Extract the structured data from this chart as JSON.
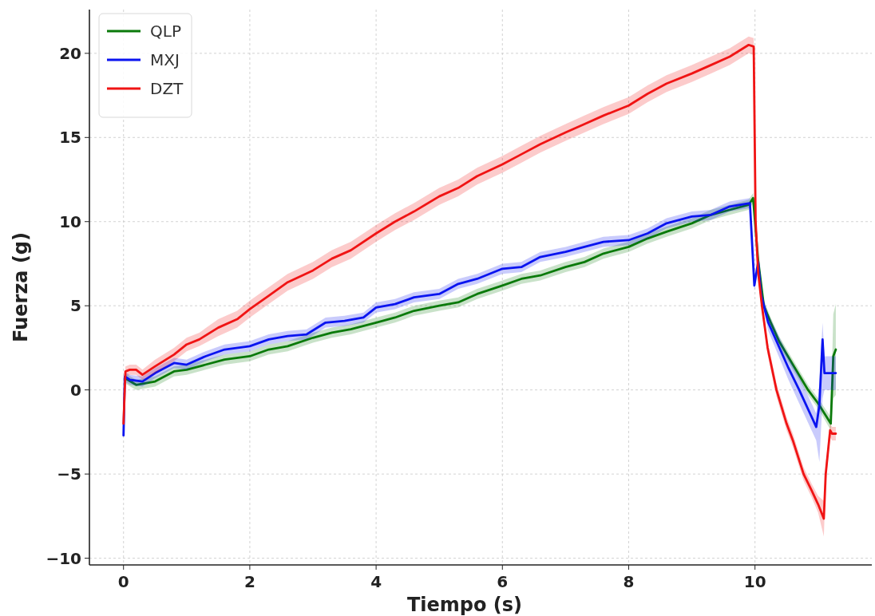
{
  "chart_data": {
    "type": "line",
    "xlabel": "Tiempo (s)",
    "ylabel": "Fuerza (g)",
    "xlim": [
      -0.54,
      11.85
    ],
    "ylim": [
      -10.4,
      22.6
    ],
    "xticks": [
      0,
      2,
      4,
      6,
      8,
      10
    ],
    "yticks": [
      {
        "value": -10,
        "label": "−10"
      },
      {
        "value": -5,
        "label": "−5"
      },
      0,
      5,
      10,
      15,
      20
    ],
    "grid": true,
    "legend": "top left",
    "line_style": "solid",
    "marker": "none",
    "series": [
      {
        "name": "QLP",
        "color": "#0a7a0a",
        "x": [
          0.02,
          0.2,
          0.5,
          0.8,
          1.0,
          1.3,
          1.6,
          2.0,
          2.3,
          2.6,
          3.0,
          3.3,
          3.6,
          4.0,
          4.3,
          4.6,
          5.0,
          5.3,
          5.6,
          6.0,
          6.3,
          6.6,
          7.0,
          7.3,
          7.6,
          8.0,
          8.3,
          8.6,
          9.0,
          9.3,
          9.6,
          9.9,
          9.97,
          10.05,
          10.14,
          10.25,
          10.38,
          10.6,
          10.84,
          11.0,
          11.2,
          11.24,
          11.28
        ],
        "values": [
          0.7,
          0.3,
          0.5,
          1.1,
          1.2,
          1.5,
          1.8,
          2.0,
          2.4,
          2.6,
          3.1,
          3.4,
          3.6,
          4.0,
          4.3,
          4.7,
          5.0,
          5.2,
          5.7,
          6.2,
          6.6,
          6.8,
          7.3,
          7.6,
          8.1,
          8.5,
          9.0,
          9.4,
          9.9,
          10.4,
          10.7,
          11.0,
          11.4,
          7.7,
          5.0,
          4.0,
          2.9,
          1.5,
          0.0,
          -0.8,
          -2.0,
          2.0,
          2.4
        ],
        "lower": [
          0.4,
          0.0,
          0.2,
          0.8,
          0.9,
          1.2,
          1.5,
          1.7,
          2.1,
          2.3,
          2.8,
          3.1,
          3.3,
          3.7,
          4.0,
          4.4,
          4.7,
          4.9,
          5.4,
          5.9,
          6.3,
          6.5,
          7.0,
          7.3,
          7.8,
          8.2,
          8.7,
          9.1,
          9.6,
          10.1,
          10.4,
          10.7,
          11.1,
          7.4,
          4.7,
          3.7,
          2.6,
          1.2,
          -0.3,
          -1.1,
          -2.4,
          -0.5,
          -0.3
        ],
        "upper": [
          1.0,
          0.6,
          0.8,
          1.4,
          1.5,
          1.8,
          2.1,
          2.3,
          2.7,
          2.9,
          3.4,
          3.7,
          3.9,
          4.3,
          4.6,
          5.0,
          5.3,
          5.5,
          6.0,
          6.5,
          6.9,
          7.1,
          7.6,
          7.9,
          8.4,
          8.8,
          9.3,
          9.7,
          10.2,
          10.7,
          11.0,
          11.3,
          11.7,
          8.0,
          5.3,
          4.3,
          3.2,
          1.8,
          0.3,
          -0.5,
          -1.6,
          4.5,
          5.1
        ]
      },
      {
        "name": "MXJ",
        "color": "#0a14f0",
        "x": [
          0,
          0.02,
          0.1,
          0.3,
          0.5,
          0.8,
          1.0,
          1.3,
          1.6,
          2.0,
          2.3,
          2.6,
          2.9,
          3.2,
          3.5,
          3.8,
          4.0,
          4.3,
          4.6,
          5.0,
          5.3,
          5.6,
          6.0,
          6.3,
          6.6,
          7.0,
          7.3,
          7.6,
          8.0,
          8.3,
          8.6,
          9.0,
          9.3,
          9.6,
          9.92,
          9.99,
          10.05,
          10.1,
          10.21,
          10.53,
          10.7,
          10.97,
          11.02,
          11.07,
          11.1,
          11.28
        ],
        "values": [
          -2.7,
          0.8,
          0.6,
          0.5,
          1.0,
          1.6,
          1.5,
          2.0,
          2.4,
          2.6,
          3.0,
          3.2,
          3.3,
          4.0,
          4.1,
          4.3,
          4.9,
          5.1,
          5.5,
          5.7,
          6.3,
          6.6,
          7.2,
          7.3,
          7.9,
          8.2,
          8.5,
          8.8,
          8.9,
          9.3,
          9.9,
          10.3,
          10.4,
          10.9,
          11.1,
          6.2,
          7.6,
          5.6,
          4.0,
          1.3,
          0.0,
          -2.2,
          -0.9,
          3.0,
          1.0,
          1.0
        ],
        "lower": [
          -2.9,
          0.5,
          0.3,
          0.2,
          0.7,
          1.3,
          1.2,
          1.7,
          2.1,
          2.3,
          2.7,
          2.9,
          3.0,
          3.7,
          3.8,
          4.0,
          4.6,
          4.8,
          5.2,
          5.4,
          6.0,
          6.3,
          6.9,
          7.0,
          7.6,
          7.9,
          8.2,
          8.5,
          8.6,
          9.0,
          9.6,
          10.0,
          10.1,
          10.6,
          10.8,
          5.9,
          7.3,
          5.3,
          3.5,
          0.6,
          -0.8,
          -3.0,
          -4.3,
          -0.5,
          0.0,
          0.0
        ],
        "upper": [
          -2.5,
          1.1,
          0.9,
          0.8,
          1.3,
          1.9,
          1.8,
          2.3,
          2.7,
          2.9,
          3.3,
          3.5,
          3.6,
          4.3,
          4.4,
          4.6,
          5.2,
          5.4,
          5.8,
          6.0,
          6.6,
          6.9,
          7.5,
          7.6,
          8.2,
          8.5,
          8.8,
          9.1,
          9.2,
          9.6,
          10.2,
          10.6,
          10.7,
          11.2,
          11.4,
          6.5,
          7.9,
          5.9,
          4.5,
          2.0,
          0.8,
          -1.4,
          0.4,
          4.0,
          2.0,
          2.0
        ]
      },
      {
        "name": "DZT",
        "color": "#f01414",
        "x": [
          0,
          0.03,
          0.1,
          0.2,
          0.3,
          0.5,
          0.8,
          1.0,
          1.2,
          1.5,
          1.8,
          2.0,
          2.3,
          2.6,
          3.0,
          3.3,
          3.6,
          4.0,
          4.3,
          4.6,
          5.0,
          5.3,
          5.6,
          6.0,
          6.3,
          6.6,
          7.0,
          7.3,
          7.6,
          8.0,
          8.3,
          8.6,
          9.0,
          9.3,
          9.6,
          9.9,
          9.98,
          10.01,
          10.05,
          10.11,
          10.2,
          10.34,
          10.5,
          10.6,
          10.77,
          10.9,
          11.0,
          11.09,
          11.12,
          11.19,
          11.22,
          11.28
        ],
        "values": [
          -2.0,
          1.1,
          1.2,
          1.2,
          0.9,
          1.4,
          2.1,
          2.7,
          3.0,
          3.7,
          4.2,
          4.8,
          5.6,
          6.4,
          7.1,
          7.8,
          8.3,
          9.3,
          10.0,
          10.6,
          11.5,
          12.0,
          12.7,
          13.4,
          14.0,
          14.6,
          15.3,
          15.8,
          16.3,
          16.9,
          17.6,
          18.2,
          18.8,
          19.3,
          19.8,
          20.5,
          20.4,
          10.0,
          7.0,
          5.0,
          2.5,
          0.0,
          -2.0,
          -3.0,
          -5.0,
          -6.0,
          -6.8,
          -7.65,
          -5.0,
          -2.4,
          -2.6,
          -2.6
        ],
        "lower": [
          -2.3,
          0.8,
          0.9,
          0.9,
          0.6,
          1.0,
          1.7,
          2.3,
          2.6,
          3.2,
          3.7,
          4.3,
          5.1,
          5.9,
          6.6,
          7.3,
          7.8,
          8.8,
          9.5,
          10.1,
          11.0,
          11.5,
          12.2,
          12.9,
          13.5,
          14.1,
          14.8,
          15.3,
          15.8,
          16.4,
          17.1,
          17.7,
          18.3,
          18.8,
          19.3,
          20.0,
          19.9,
          9.6,
          6.6,
          4.6,
          2.1,
          -0.4,
          -2.4,
          -3.4,
          -5.4,
          -6.4,
          -7.3,
          -8.7,
          -5.6,
          -2.8,
          -3.0,
          -3.0
        ],
        "upper": [
          -1.7,
          1.4,
          1.5,
          1.5,
          1.2,
          1.8,
          2.5,
          3.1,
          3.4,
          4.2,
          4.7,
          5.3,
          6.1,
          6.9,
          7.6,
          8.3,
          8.8,
          9.8,
          10.5,
          11.1,
          12.0,
          12.5,
          13.2,
          13.9,
          14.5,
          15.1,
          15.8,
          16.3,
          16.8,
          17.4,
          18.1,
          18.7,
          19.3,
          19.8,
          20.3,
          21.0,
          20.9,
          10.4,
          7.4,
          5.4,
          2.9,
          0.4,
          -1.6,
          -2.6,
          -4.6,
          -5.6,
          -6.3,
          -6.6,
          -4.4,
          -2.0,
          -2.2,
          -2.2
        ]
      }
    ]
  }
}
